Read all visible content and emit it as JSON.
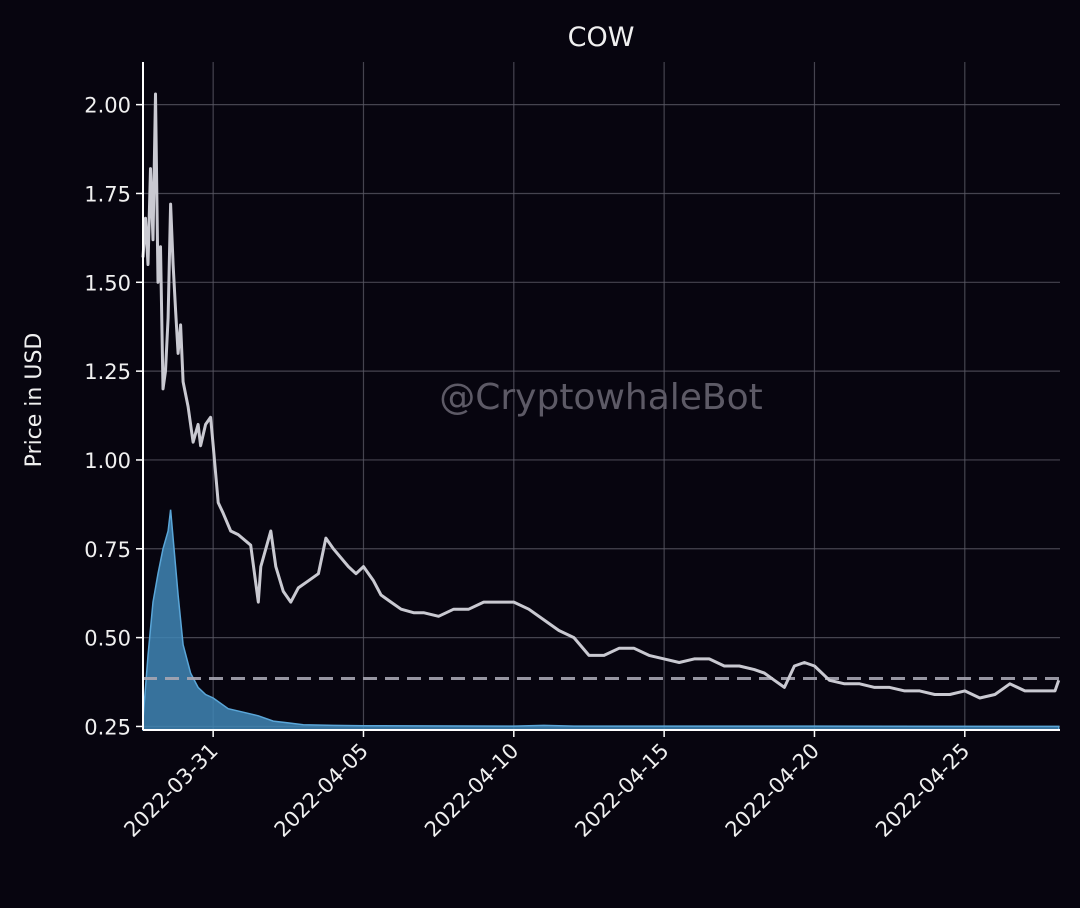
{
  "chart_data": {
    "type": "line",
    "title": "COW",
    "ylabel": "Price in USD",
    "xlabel": "",
    "watermark": "@CryptowhaleBot",
    "x_range": [
      "2022-03-28T16:00",
      "2022-04-28T04:00"
    ],
    "ylim": [
      0.24,
      2.12
    ],
    "yticks": [
      {
        "v": 0.25,
        "label": "0.25"
      },
      {
        "v": 0.5,
        "label": "0.50"
      },
      {
        "v": 0.75,
        "label": "0.75"
      },
      {
        "v": 1.0,
        "label": "1.00"
      },
      {
        "v": 1.25,
        "label": "1.25"
      },
      {
        "v": 1.5,
        "label": "1.50"
      },
      {
        "v": 1.75,
        "label": "1.75"
      },
      {
        "v": 2.0,
        "label": "2.00"
      }
    ],
    "xticks": [
      {
        "v": "2022-03-31",
        "label": "2022-03-31"
      },
      {
        "v": "2022-04-05",
        "label": "2022-04-05"
      },
      {
        "v": "2022-04-10",
        "label": "2022-04-10"
      },
      {
        "v": "2022-04-15",
        "label": "2022-04-15"
      },
      {
        "v": "2022-04-20",
        "label": "2022-04-20"
      },
      {
        "v": "2022-04-25",
        "label": "2022-04-25"
      }
    ],
    "grid": true,
    "reference_line": {
      "value": 0.385,
      "style": "dashed"
    },
    "price": {
      "x": [
        "2022-03-28T16:00",
        "2022-03-28T18:00",
        "2022-03-28T20:00",
        "2022-03-28T22:00",
        "2022-03-29T00:00",
        "2022-03-29T02:00",
        "2022-03-29T04:00",
        "2022-03-29T06:00",
        "2022-03-29T08:00",
        "2022-03-29T10:00",
        "2022-03-29T12:00",
        "2022-03-29T14:00",
        "2022-03-29T16:00",
        "2022-03-29T18:00",
        "2022-03-29T20:00",
        "2022-03-29T22:00",
        "2022-03-30T00:00",
        "2022-03-30T04:00",
        "2022-03-30T08:00",
        "2022-03-30T12:00",
        "2022-03-30T14:00",
        "2022-03-30T18:00",
        "2022-03-30T22:00",
        "2022-03-31T00:00",
        "2022-03-31T04:00",
        "2022-03-31T08:00",
        "2022-03-31T14:00",
        "2022-03-31T20:00",
        "2022-04-01T06:00",
        "2022-04-01T12:00",
        "2022-04-01T14:00",
        "2022-04-01T18:00",
        "2022-04-01T22:00",
        "2022-04-02T02:00",
        "2022-04-02T08:00",
        "2022-04-02T14:00",
        "2022-04-02T20:00",
        "2022-04-03T04:00",
        "2022-04-03T12:00",
        "2022-04-03T18:00",
        "2022-04-04T00:00",
        "2022-04-04T12:00",
        "2022-04-04T18:00",
        "2022-04-05T00:00",
        "2022-04-05T08:00",
        "2022-04-05T14:00",
        "2022-04-05T22:00",
        "2022-04-06T06:00",
        "2022-04-06T16:00",
        "2022-04-07T00:00",
        "2022-04-07T12:00",
        "2022-04-08T00:00",
        "2022-04-08T12:00",
        "2022-04-09T00:00",
        "2022-04-09T12:00",
        "2022-04-10T00:00",
        "2022-04-10T12:00",
        "2022-04-11T00:00",
        "2022-04-11T12:00",
        "2022-04-12T00:00",
        "2022-04-12T12:00",
        "2022-04-13T00:00",
        "2022-04-13T12:00",
        "2022-04-14T00:00",
        "2022-04-14T12:00",
        "2022-04-15T00:00",
        "2022-04-15T12:00",
        "2022-04-16T00:00",
        "2022-04-16T12:00",
        "2022-04-17T00:00",
        "2022-04-17T12:00",
        "2022-04-18T00:00",
        "2022-04-18T08:00",
        "2022-04-18T16:00",
        "2022-04-19T00:00",
        "2022-04-19T08:00",
        "2022-04-19T16:00",
        "2022-04-20T00:00",
        "2022-04-20T12:00",
        "2022-04-21T00:00",
        "2022-04-21T12:00",
        "2022-04-22T00:00",
        "2022-04-22T12:00",
        "2022-04-23T00:00",
        "2022-04-23T12:00",
        "2022-04-24T00:00",
        "2022-04-24T12:00",
        "2022-04-25T00:00",
        "2022-04-25T12:00",
        "2022-04-26T00:00",
        "2022-04-26T12:00",
        "2022-04-27T00:00",
        "2022-04-27T12:00",
        "2022-04-28T00:00",
        "2022-04-28T03:00"
      ],
      "y": [
        1.57,
        1.68,
        1.55,
        1.82,
        1.62,
        2.03,
        1.5,
        1.6,
        1.2,
        1.25,
        1.4,
        1.72,
        1.55,
        1.42,
        1.3,
        1.38,
        1.22,
        1.15,
        1.05,
        1.1,
        1.04,
        1.1,
        1.12,
        1.04,
        0.88,
        0.85,
        0.8,
        0.79,
        0.76,
        0.6,
        0.7,
        0.75,
        0.8,
        0.7,
        0.63,
        0.6,
        0.64,
        0.66,
        0.68,
        0.78,
        0.75,
        0.7,
        0.68,
        0.7,
        0.66,
        0.62,
        0.6,
        0.58,
        0.57,
        0.57,
        0.56,
        0.58,
        0.58,
        0.6,
        0.6,
        0.6,
        0.58,
        0.55,
        0.52,
        0.5,
        0.45,
        0.45,
        0.47,
        0.47,
        0.45,
        0.44,
        0.43,
        0.44,
        0.44,
        0.42,
        0.42,
        0.41,
        0.4,
        0.38,
        0.36,
        0.42,
        0.43,
        0.42,
        0.38,
        0.37,
        0.37,
        0.36,
        0.36,
        0.35,
        0.35,
        0.34,
        0.34,
        0.35,
        0.33,
        0.34,
        0.37,
        0.35,
        0.35,
        0.35,
        0.38
      ]
    },
    "volume_area": {
      "x": [
        "2022-03-28T16:00",
        "2022-03-28T20:00",
        "2022-03-29T00:00",
        "2022-03-29T04:00",
        "2022-03-29T08:00",
        "2022-03-29T12:00",
        "2022-03-29T14:00",
        "2022-03-29T16:00",
        "2022-03-29T20:00",
        "2022-03-30T00:00",
        "2022-03-30T06:00",
        "2022-03-30T12:00",
        "2022-03-30T18:00",
        "2022-03-31T00:00",
        "2022-03-31T12:00",
        "2022-04-01T00:00",
        "2022-04-01T12:00",
        "2022-04-02T00:00",
        "2022-04-02T12:00",
        "2022-04-03T00:00",
        "2022-04-04T00:00",
        "2022-04-05T00:00",
        "2022-04-10T00:00",
        "2022-04-11T00:00",
        "2022-04-12T00:00",
        "2022-04-15T00:00",
        "2022-04-20T00:00",
        "2022-04-28T03:00"
      ],
      "y": [
        0.27,
        0.45,
        0.6,
        0.68,
        0.75,
        0.8,
        0.86,
        0.78,
        0.62,
        0.48,
        0.4,
        0.36,
        0.34,
        0.33,
        0.3,
        0.29,
        0.28,
        0.265,
        0.26,
        0.255,
        0.253,
        0.252,
        0.251,
        0.253,
        0.251,
        0.251,
        0.251,
        0.25
      ]
    },
    "colors": {
      "background": "#07050f",
      "price_line": "#c9c9d1",
      "area_fill": "#3f86b5",
      "area_edge": "#5aa6d8",
      "grid": "#5b5966",
      "reference": "#a7a6b2",
      "text": "#f0f0f0"
    }
  }
}
